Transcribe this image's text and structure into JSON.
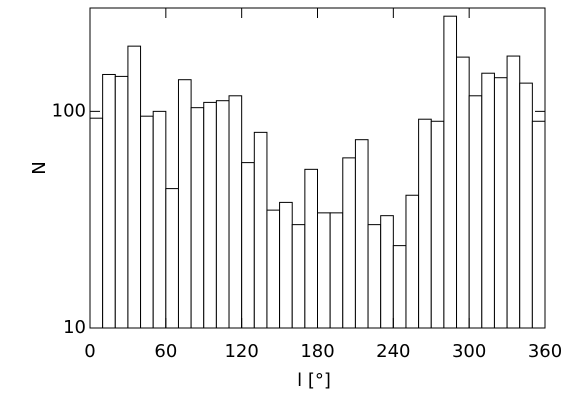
{
  "chart_data": {
    "type": "histogram",
    "x_label": "l [°]",
    "y_label": "N",
    "bins": [
      0,
      10,
      20,
      30,
      40,
      50,
      60,
      70,
      80,
      90,
      100,
      110,
      120,
      130,
      140,
      150,
      160,
      170,
      180,
      190,
      200,
      210,
      220,
      230,
      240,
      250,
      260,
      270,
      280,
      290,
      300,
      310,
      320,
      330,
      340,
      350,
      360
    ],
    "values": [
      93,
      148,
      145,
      200,
      95,
      100,
      44,
      140,
      104,
      110,
      112,
      118,
      58,
      80,
      35,
      38,
      30,
      54,
      34,
      34,
      61,
      74,
      30,
      33,
      24,
      41,
      92,
      90,
      275,
      178,
      118,
      150,
      143,
      180,
      135,
      90
    ],
    "color": "#000000",
    "xlim": [
      0,
      360
    ],
    "xticks": [
      0,
      60,
      120,
      180,
      240,
      300,
      360
    ],
    "ylim": [
      10,
      300
    ],
    "yticks": [
      10,
      100
    ],
    "ylog": true
  }
}
